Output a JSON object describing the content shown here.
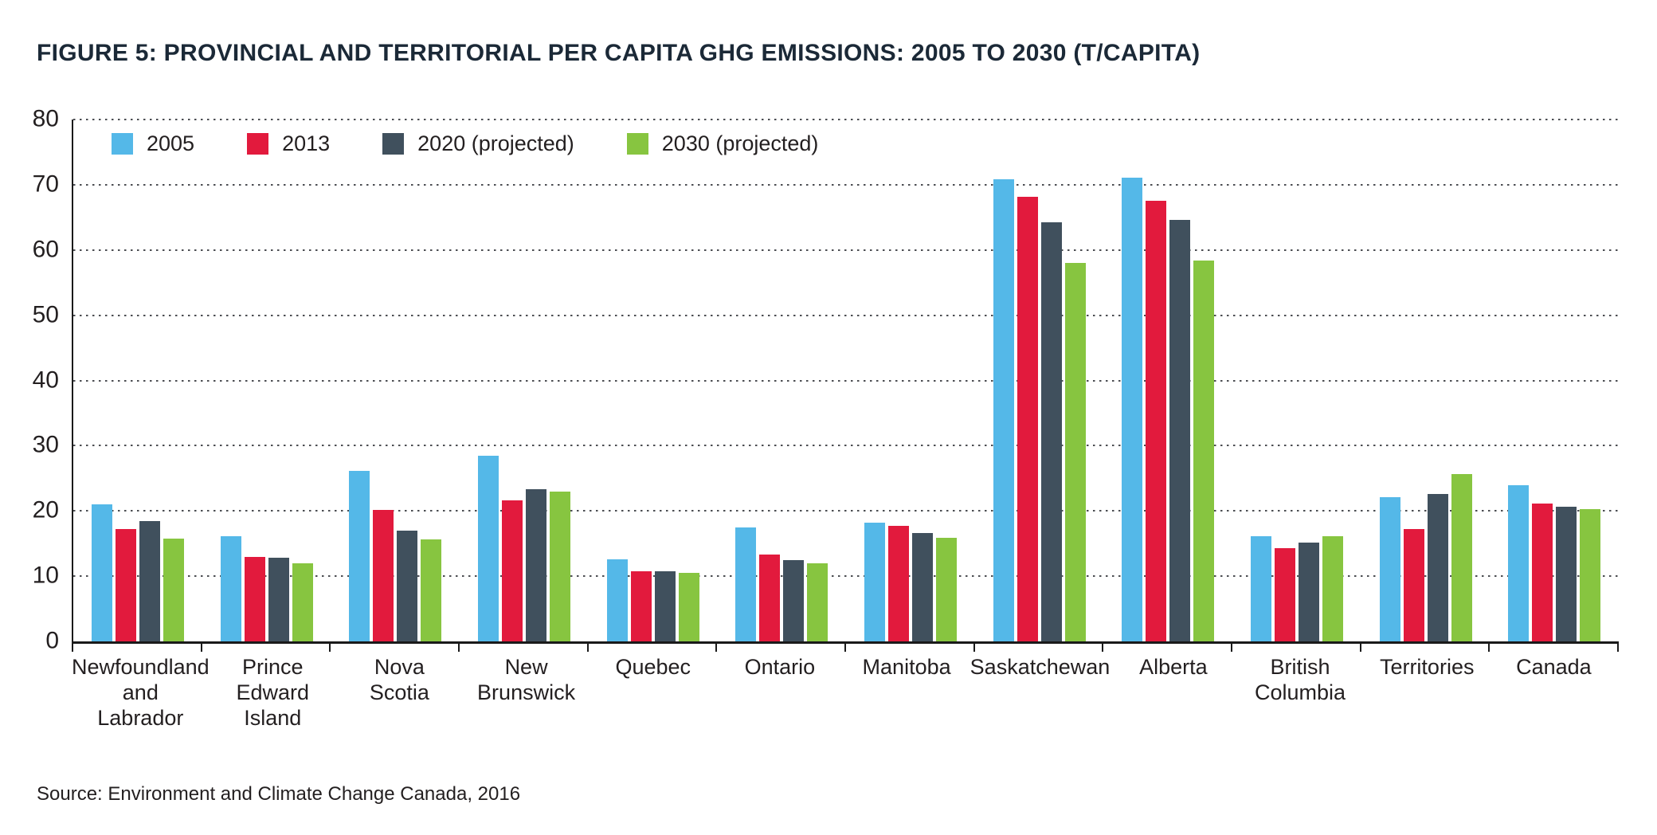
{
  "title": "FIGURE 5: PROVINCIAL AND TERRITORIAL PER CAPITA GHG EMISSIONS: 2005 TO 2030 (T/CAPITA)",
  "source": "Source: Environment and Climate Change Canada, 2016",
  "chart_data": {
    "type": "bar",
    "title": "FIGURE 5: PROVINCIAL AND TERRITORIAL PER CAPITA GHG EMISSIONS: 2005 TO 2030 (T/CAPITA)",
    "xlabel": "",
    "ylabel": "",
    "ylim": [
      0,
      80
    ],
    "ytick_step": 10,
    "grid": "dotted-horizontal",
    "legend_position": "top-left-inside",
    "categories": [
      "Newfoundland\nand\nLabrador",
      "Prince\nEdward\nIsland",
      "Nova\nScotia",
      "New\nBrunswick",
      "Quebec",
      "Ontario",
      "Manitoba",
      "Saskatchewan",
      "Alberta",
      "British\nColumbia",
      "Territories",
      "Canada"
    ],
    "series": [
      {
        "name": "2005",
        "color": "#54b8e8",
        "values": [
          21.0,
          16.1,
          26.2,
          28.4,
          12.6,
          17.5,
          18.2,
          70.8,
          71.1,
          16.1,
          22.1,
          23.9
        ]
      },
      {
        "name": "2013",
        "color": "#e21a3d",
        "values": [
          17.2,
          13.0,
          20.2,
          21.6,
          10.7,
          13.3,
          17.7,
          68.2,
          67.5,
          14.3,
          17.2,
          21.1
        ]
      },
      {
        "name": "2020 (projected)",
        "color": "#40505d",
        "values": [
          18.5,
          12.8,
          17.0,
          23.3,
          10.7,
          12.5,
          16.6,
          64.3,
          64.6,
          15.2,
          22.6,
          20.7
        ]
      },
      {
        "name": "2030 (projected)",
        "color": "#87c540",
        "values": [
          15.7,
          12.0,
          15.6,
          23.0,
          10.5,
          12.0,
          15.9,
          58.0,
          58.4,
          16.1,
          25.6,
          20.3
        ]
      }
    ]
  }
}
